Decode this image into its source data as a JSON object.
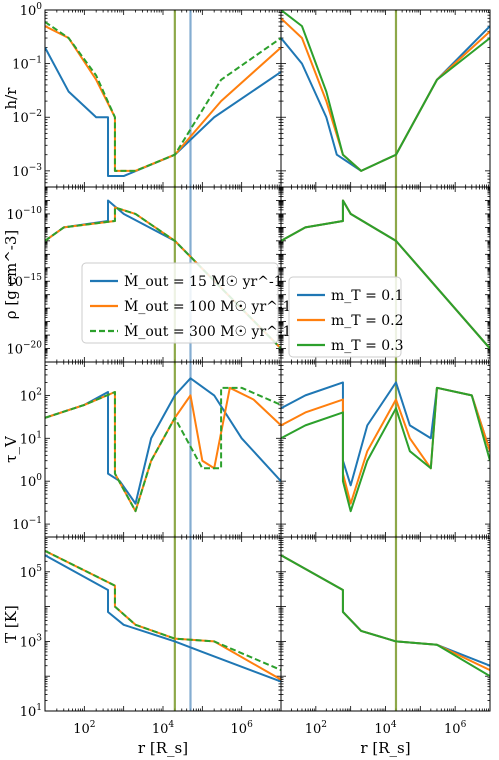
{
  "chart_data": {
    "type": "line",
    "x_scale": "log",
    "xlim": [
      10,
      10000000
    ],
    "x_ticks": [
      "10^2",
      "10^4",
      "10^6"
    ],
    "xlabel": "r [R_s]",
    "colors": {
      "blue": "#1f77b4",
      "orange": "#ff7f0e",
      "green": "#2ca02c",
      "olive": "#7a9a2a",
      "lightblue": "#6f9fca"
    },
    "vertical_lines": [
      {
        "panel_column": "both",
        "x": 20000,
        "color": "olive"
      },
      {
        "panel_column": "left",
        "x": 50000,
        "color": "lightblue"
      }
    ],
    "rows": [
      {
        "ylabel": "h/r",
        "ylim": [
          0.0005,
          1
        ],
        "y_ticks": [
          "10^-3",
          "10^-2",
          "10^-1",
          "10^0"
        ]
      },
      {
        "ylabel": "ρ [g cm^-3]",
        "ylim": [
          1e-21,
          1e-08
        ],
        "y_ticks": [
          "10^-20",
          "10^-15",
          "10^-10"
        ]
      },
      {
        "ylabel": "τ_V",
        "ylim": [
          0.05,
          600
        ],
        "y_ticks": [
          "10^-1",
          "10^0",
          "10^1",
          "10^2"
        ]
      },
      {
        "ylabel": "T [K]",
        "ylim": [
          10,
          1000000
        ],
        "y_ticks": [
          "10^1",
          "10^3",
          "10^5"
        ]
      }
    ],
    "legends": {
      "left": [
        "Ṁ_out = 15 M☉ yr^-1",
        "Ṁ_out = 100 M☉ yr^-1",
        "Ṁ_out = 300 M☉ yr^-1"
      ],
      "right": [
        "m_T = 0.1",
        "m_T = 0.2",
        "m_T = 0.3"
      ]
    },
    "series": {
      "left": [
        {
          "name": "Ṁ_out = 15 M☉ yr^-1",
          "color": "blue",
          "dash": false,
          "h_r": [
            [
              10,
              0.2
            ],
            [
              40,
              0.03
            ],
            [
              200,
              0.01
            ],
            [
              400,
              0.01
            ],
            [
              400,
              0.0008
            ],
            [
              1000,
              0.0008
            ],
            [
              20000,
              0.002
            ],
            [
              200000,
              0.01
            ],
            [
              10000000,
              0.07
            ]
          ],
          "rho": [
            [
              10,
              1e-12
            ],
            [
              30,
              1e-11
            ],
            [
              400,
              3e-11
            ],
            [
              400,
              1e-09
            ],
            [
              1000,
              1e-10
            ],
            [
              20000,
              1e-12
            ],
            [
              10000000,
              1e-20
            ]
          ],
          "tau": [
            [
              10,
              30
            ],
            [
              100,
              60
            ],
            [
              400,
              120
            ],
            [
              400,
              1.5
            ],
            [
              800,
              1
            ],
            [
              2000,
              0.3
            ],
            [
              5000,
              10
            ],
            [
              20000,
              100
            ],
            [
              50000,
              250
            ],
            [
              200000,
              100
            ],
            [
              1000000,
              10
            ],
            [
              10000000,
              1
            ]
          ],
          "T": [
            [
              10,
              300000
            ],
            [
              400,
              30000
            ],
            [
              400,
              7000
            ],
            [
              1000,
              3000
            ],
            [
              20000,
              1000
            ],
            [
              100000,
              500
            ],
            [
              10000000,
              70
            ]
          ]
        },
        {
          "name": "Ṁ_out = 100 M☉ yr^-1",
          "color": "orange",
          "dash": false,
          "h_r": [
            [
              10,
              0.5
            ],
            [
              40,
              0.3
            ],
            [
              200,
              0.05
            ],
            [
              600,
              0.01
            ],
            [
              600,
              0.001
            ],
            [
              2000,
              0.001
            ],
            [
              20000,
              0.002
            ],
            [
              300000,
              0.02
            ],
            [
              10000000,
              0.2
            ]
          ],
          "rho": [
            [
              10,
              1e-12
            ],
            [
              30,
              1e-11
            ],
            [
              600,
              3e-11
            ],
            [
              600,
              3e-10
            ],
            [
              2000,
              1e-10
            ],
            [
              20000,
              1e-12
            ],
            [
              10000000,
              1e-20
            ]
          ],
          "tau": [
            [
              10,
              30
            ],
            [
              100,
              60
            ],
            [
              600,
              120
            ],
            [
              600,
              1.5
            ],
            [
              2000,
              0.2
            ],
            [
              5000,
              3
            ],
            [
              20000,
              30
            ],
            [
              50000,
              100
            ],
            [
              100000,
              3
            ],
            [
              200000,
              2
            ],
            [
              500000,
              150
            ],
            [
              2000000,
              80
            ],
            [
              10000000,
              20
            ]
          ],
          "T": [
            [
              10,
              400000
            ],
            [
              600,
              40000
            ],
            [
              600,
              10000
            ],
            [
              2000,
              3000
            ],
            [
              20000,
              1200
            ],
            [
              200000,
              1000
            ],
            [
              10000000,
              80
            ]
          ]
        },
        {
          "name": "Ṁ_out = 300 M☉ yr^-1",
          "color": "green",
          "dash": true,
          "h_r": [
            [
              10,
              0.6
            ],
            [
              40,
              0.3
            ],
            [
              200,
              0.06
            ],
            [
              600,
              0.01
            ],
            [
              600,
              0.001
            ],
            [
              2000,
              0.001
            ],
            [
              20000,
              0.002
            ],
            [
              300000,
              0.05
            ],
            [
              10000000,
              0.3
            ]
          ],
          "rho": [
            [
              10,
              1e-12
            ],
            [
              30,
              1e-11
            ],
            [
              600,
              3e-11
            ],
            [
              600,
              3e-10
            ],
            [
              2000,
              1e-10
            ],
            [
              20000,
              1e-12
            ],
            [
              10000000,
              1e-20
            ]
          ],
          "tau": [
            [
              10,
              30
            ],
            [
              100,
              60
            ],
            [
              600,
              120
            ],
            [
              600,
              1.5
            ],
            [
              2000,
              0.2
            ],
            [
              5000,
              3
            ],
            [
              20000,
              30
            ],
            [
              100000,
              2
            ],
            [
              300000,
              2
            ],
            [
              300000,
              150
            ],
            [
              1000000,
              150
            ],
            [
              10000000,
              60
            ]
          ],
          "T": [
            [
              10,
              400000
            ],
            [
              600,
              40000
            ],
            [
              600,
              10000
            ],
            [
              2000,
              3000
            ],
            [
              20000,
              1200
            ],
            [
              200000,
              1000
            ],
            [
              10000000,
              150
            ]
          ]
        }
      ],
      "right": [
        {
          "name": "m_T = 0.1",
          "color": "blue",
          "dash": false,
          "h_r": [
            [
              10,
              0.3
            ],
            [
              40,
              0.1
            ],
            [
              200,
              0.01
            ],
            [
              400,
              0.002
            ],
            [
              2000,
              0.001
            ],
            [
              20000,
              0.002
            ],
            [
              300000,
              0.05
            ],
            [
              10000000,
              0.5
            ]
          ],
          "rho": [
            [
              10,
              1e-12
            ],
            [
              50,
              1e-11
            ],
            [
              600,
              3e-11
            ],
            [
              600,
              1e-09
            ],
            [
              1000,
              1e-10
            ],
            [
              20000,
              1e-12
            ],
            [
              10000000,
              1e-20
            ]
          ],
          "tau": [
            [
              10,
              50
            ],
            [
              50,
              100
            ],
            [
              600,
              200
            ],
            [
              600,
              3
            ],
            [
              1000,
              0.8
            ],
            [
              3000,
              20
            ],
            [
              20000,
              200
            ],
            [
              50000,
              20
            ],
            [
              200000,
              10
            ],
            [
              300000,
              150
            ],
            [
              3000000,
              100
            ],
            [
              10000000,
              5
            ]
          ],
          "T": [
            [
              10,
              300000
            ],
            [
              600,
              30000
            ],
            [
              600,
              7000
            ],
            [
              2000,
              2000
            ],
            [
              20000,
              1000
            ],
            [
              300000,
              800
            ],
            [
              10000000,
              200
            ]
          ]
        },
        {
          "name": "m_T = 0.2",
          "color": "orange",
          "dash": false,
          "h_r": [
            [
              10,
              0.7
            ],
            [
              40,
              0.3
            ],
            [
              200,
              0.02
            ],
            [
              600,
              0.002
            ],
            [
              2000,
              0.001
            ],
            [
              20000,
              0.002
            ],
            [
              300000,
              0.05
            ],
            [
              10000000,
              0.4
            ]
          ],
          "rho": [
            [
              10,
              1e-12
            ],
            [
              50,
              1e-11
            ],
            [
              600,
              3e-11
            ],
            [
              600,
              1e-09
            ],
            [
              1000,
              1e-10
            ],
            [
              20000,
              1e-12
            ],
            [
              10000000,
              1e-20
            ]
          ],
          "tau": [
            [
              10,
              20
            ],
            [
              50,
              40
            ],
            [
              600,
              80
            ],
            [
              600,
              1.5
            ],
            [
              1000,
              0.3
            ],
            [
              3000,
              5
            ],
            [
              20000,
              80
            ],
            [
              50000,
              10
            ],
            [
              200000,
              2
            ],
            [
              300000,
              150
            ],
            [
              3000000,
              100
            ],
            [
              10000000,
              5
            ]
          ],
          "T": [
            [
              10,
              300000
            ],
            [
              600,
              30000
            ],
            [
              600,
              7000
            ],
            [
              2000,
              2000
            ],
            [
              20000,
              1000
            ],
            [
              300000,
              800
            ],
            [
              10000000,
              150
            ]
          ]
        },
        {
          "name": "m_T = 0.3",
          "color": "green",
          "dash": false,
          "h_r": [
            [
              10,
              1
            ],
            [
              40,
              0.5
            ],
            [
              200,
              0.03
            ],
            [
              600,
              0.002
            ],
            [
              2000,
              0.001
            ],
            [
              20000,
              0.002
            ],
            [
              300000,
              0.05
            ],
            [
              10000000,
              0.3
            ]
          ],
          "rho": [
            [
              10,
              1e-12
            ],
            [
              50,
              1e-11
            ],
            [
              600,
              3e-11
            ],
            [
              600,
              1e-09
            ],
            [
              1000,
              1e-10
            ],
            [
              20000,
              1e-12
            ],
            [
              10000000,
              1e-20
            ]
          ],
          "tau": [
            [
              10,
              10
            ],
            [
              50,
              20
            ],
            [
              600,
              40
            ],
            [
              600,
              1
            ],
            [
              1000,
              0.2
            ],
            [
              3000,
              3
            ],
            [
              20000,
              50
            ],
            [
              50000,
              5
            ],
            [
              200000,
              2
            ],
            [
              300000,
              150
            ],
            [
              3000000,
              100
            ],
            [
              10000000,
              3
            ]
          ],
          "T": [
            [
              10,
              300000
            ],
            [
              600,
              30000
            ],
            [
              600,
              7000
            ],
            [
              2000,
              2000
            ],
            [
              20000,
              1000
            ],
            [
              300000,
              800
            ],
            [
              10000000,
              100
            ]
          ]
        }
      ]
    }
  }
}
